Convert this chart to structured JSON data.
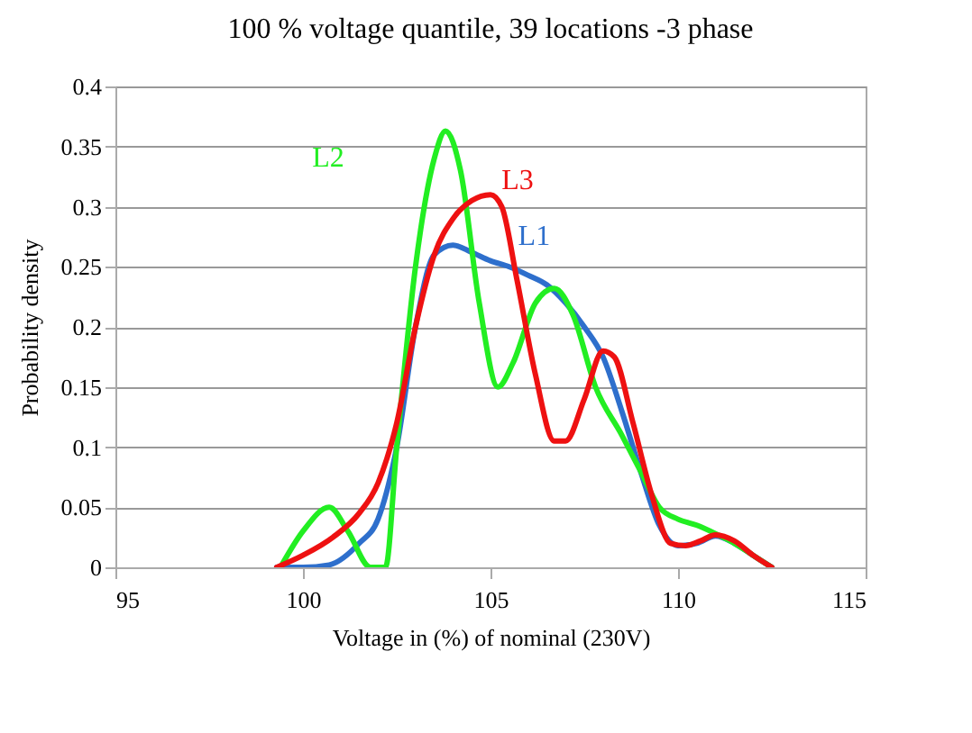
{
  "chart_data": {
    "type": "line",
    "title": "100 % voltage quantile, 39 locations -3 phase",
    "xlabel": "Voltage in (%) of nominal (230V)",
    "ylabel": "Probability density",
    "xlim": [
      95,
      115
    ],
    "xticks": [
      95,
      100,
      105,
      110,
      115
    ],
    "ylim": [
      0,
      0.4
    ],
    "yticks": [
      0,
      0.05,
      0.1,
      0.15,
      0.2,
      0.25,
      0.3,
      0.35,
      0.4
    ],
    "grid": "y",
    "legend": false,
    "marker": "none",
    "line_style": "solid",
    "series": [
      {
        "name": "L1",
        "color": "#2e6fcc",
        "x": [
          99.3,
          100,
          100.7,
          101.5,
          102,
          102.5,
          103,
          103.5,
          104,
          104.5,
          105,
          105.5,
          106,
          106.5,
          107,
          107.5,
          108,
          108.5,
          109,
          109.5,
          110,
          110.5,
          111,
          111.5,
          112,
          112.5
        ],
        "values": [
          0,
          0,
          0.002,
          0.02,
          0.04,
          0.1,
          0.2,
          0.26,
          0.268,
          0.262,
          0.255,
          0.25,
          0.243,
          0.235,
          0.22,
          0.2,
          0.175,
          0.13,
          0.08,
          0.035,
          0.018,
          0.02,
          0.026,
          0.02,
          0.01,
          0
        ]
      },
      {
        "name": "L2",
        "color": "#22ee22",
        "x": [
          99.4,
          100,
          100.7,
          101.2,
          101.8,
          102.2,
          102.5,
          103,
          103.5,
          103.8,
          104.2,
          104.7,
          105.2,
          105.6,
          106.2,
          106.7,
          107.2,
          107.8,
          108.5,
          109,
          109.5,
          110,
          110.5,
          111,
          111.5,
          112,
          112.5
        ],
        "values": [
          0,
          0.03,
          0.05,
          0.03,
          0,
          0,
          0.1,
          0.25,
          0.34,
          0.363,
          0.33,
          0.22,
          0.15,
          0.17,
          0.22,
          0.232,
          0.21,
          0.15,
          0.11,
          0.08,
          0.05,
          0.04,
          0.035,
          0.028,
          0.02,
          0.01,
          0
        ]
      },
      {
        "name": "L3",
        "color": "#ee1111",
        "x": [
          99.3,
          100,
          100.8,
          101.5,
          102,
          102.5,
          103,
          103.5,
          104,
          104.5,
          105,
          105.3,
          105.7,
          106.2,
          106.7,
          107,
          107.5,
          108,
          108.3,
          108.8,
          109.3,
          109.8,
          110.2,
          110.6,
          111,
          111.5,
          112,
          112.5
        ],
        "values": [
          0,
          0.01,
          0.025,
          0.045,
          0.07,
          0.12,
          0.2,
          0.26,
          0.29,
          0.305,
          0.31,
          0.3,
          0.24,
          0.16,
          0.105,
          0.105,
          0.14,
          0.18,
          0.175,
          0.12,
          0.06,
          0.02,
          0.018,
          0.022,
          0.027,
          0.022,
          0.01,
          0
        ]
      }
    ]
  }
}
